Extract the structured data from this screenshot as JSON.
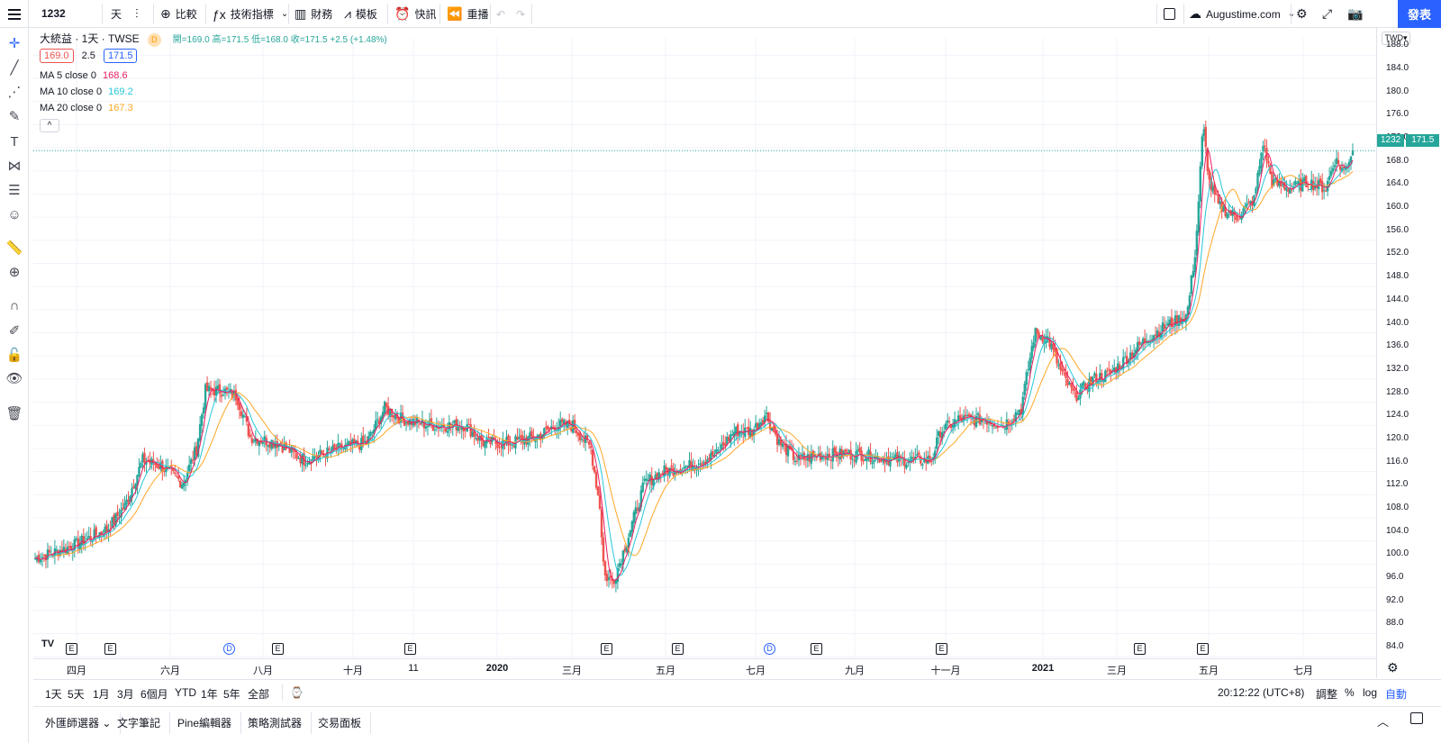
{
  "topbar": {
    "symbol": "1232",
    "interval": "天",
    "compare": "比較",
    "indicators": "技術指標",
    "financials": "財務",
    "templates": "模板",
    "alerts": "快訊",
    "replay": "重播",
    "layout_name": "Augustime.com",
    "publish": "發表"
  },
  "legend": {
    "title": "大統益 · 1天 · TWSE",
    "badge": "D",
    "ohlc": "開=169.0  高=171.5  低=168.0  收=171.5  +2.5 (+1.48%)",
    "bid": "169.0",
    "spread": "2.5",
    "ask": "171.5",
    "ma5_label": "MA 5 close 0",
    "ma5_value": "168.6",
    "ma10_label": "MA 10 close 0",
    "ma10_value": "169.2",
    "ma20_label": "MA 20 close 0",
    "ma20_value": "167.3",
    "collapse": "^"
  },
  "price_scale": {
    "currency": "TWD",
    "ticks": [
      "188.0",
      "184.0",
      "180.0",
      "176.0",
      "172.0",
      "168.0",
      "164.0",
      "160.0",
      "156.0",
      "152.0",
      "148.0",
      "144.0",
      "140.0",
      "136.0",
      "132.0",
      "128.0",
      "124.0",
      "120.0",
      "116.0",
      "112.0",
      "108.0",
      "104.0",
      "100.0",
      "96.0",
      "92.0",
      "88.0",
      "84.0"
    ],
    "last_symbol": "1232",
    "last_price": "171.5"
  },
  "time_scale": {
    "labels": [
      "四月",
      "六月",
      "八月",
      "十月",
      "11",
      "2020",
      "三月",
      "五月",
      "七月",
      "九月",
      "十一月",
      "2021",
      "三月",
      "五月",
      "七月"
    ]
  },
  "events": [
    "E",
    "E",
    "D",
    "E",
    "E",
    "E",
    "E",
    "D",
    "E",
    "E",
    "E",
    "E"
  ],
  "range_bar": {
    "ranges": [
      "1天",
      "5天",
      "1月",
      "3月",
      "6個月",
      "YTD",
      "1年",
      "5年",
      "全部"
    ],
    "clock": "20:12:22 (UTC+8)",
    "adjust": "調整",
    "percent": "%",
    "log": "log",
    "auto": "自動"
  },
  "panels": [
    "外匯師選器",
    "文字筆記",
    "Pine編輯器",
    "策略測試器",
    "交易面板"
  ],
  "colors": {
    "up": "#26a69a",
    "down": "#ef5350",
    "ma5": "#e91e63",
    "ma10": "#26c6da",
    "ma20": "#ffa726",
    "accent": "#2962ff"
  },
  "chart_data": {
    "type": "candlestick",
    "y_range": [
      82,
      191
    ],
    "series_names": [
      "MA 5 close 0",
      "MA 10 close 0",
      "MA 20 close 0"
    ],
    "anchors": [
      [
        0,
        101
      ],
      [
        40,
        103
      ],
      [
        80,
        106
      ],
      [
        100,
        110
      ],
      [
        120,
        118
      ],
      [
        140,
        117
      ],
      [
        165,
        114
      ],
      [
        180,
        120
      ],
      [
        190,
        130
      ],
      [
        210,
        130
      ],
      [
        225,
        129
      ],
      [
        240,
        122
      ],
      [
        270,
        121
      ],
      [
        300,
        118
      ],
      [
        340,
        120
      ],
      [
        370,
        121
      ],
      [
        390,
        127
      ],
      [
        410,
        125
      ],
      [
        440,
        124
      ],
      [
        480,
        124
      ],
      [
        500,
        121
      ],
      [
        530,
        121
      ],
      [
        560,
        122
      ],
      [
        580,
        124
      ],
      [
        600,
        124
      ],
      [
        620,
        120
      ],
      [
        630,
        110
      ],
      [
        635,
        98
      ],
      [
        645,
        97
      ],
      [
        660,
        104
      ],
      [
        680,
        114
      ],
      [
        700,
        116
      ],
      [
        730,
        117
      ],
      [
        760,
        119
      ],
      [
        780,
        123
      ],
      [
        800,
        123
      ],
      [
        815,
        126
      ],
      [
        830,
        121
      ],
      [
        850,
        118
      ],
      [
        880,
        119
      ],
      [
        920,
        119
      ],
      [
        960,
        118
      ],
      [
        1000,
        118
      ],
      [
        1010,
        123
      ],
      [
        1030,
        125
      ],
      [
        1060,
        125
      ],
      [
        1080,
        124
      ],
      [
        1100,
        127
      ],
      [
        1115,
        140
      ],
      [
        1130,
        139
      ],
      [
        1145,
        133
      ],
      [
        1160,
        129
      ],
      [
        1180,
        132
      ],
      [
        1200,
        133
      ],
      [
        1220,
        136
      ],
      [
        1240,
        139
      ],
      [
        1260,
        141
      ],
      [
        1285,
        143
      ],
      [
        1295,
        155
      ],
      [
        1303,
        176
      ],
      [
        1310,
        166
      ],
      [
        1320,
        162
      ],
      [
        1340,
        160
      ],
      [
        1360,
        163
      ],
      [
        1370,
        173
      ],
      [
        1380,
        166
      ],
      [
        1400,
        165
      ],
      [
        1420,
        166
      ],
      [
        1440,
        165
      ],
      [
        1450,
        170
      ],
      [
        1460,
        168
      ],
      [
        1470,
        171.5
      ]
    ],
    "last_close": 171.5
  }
}
